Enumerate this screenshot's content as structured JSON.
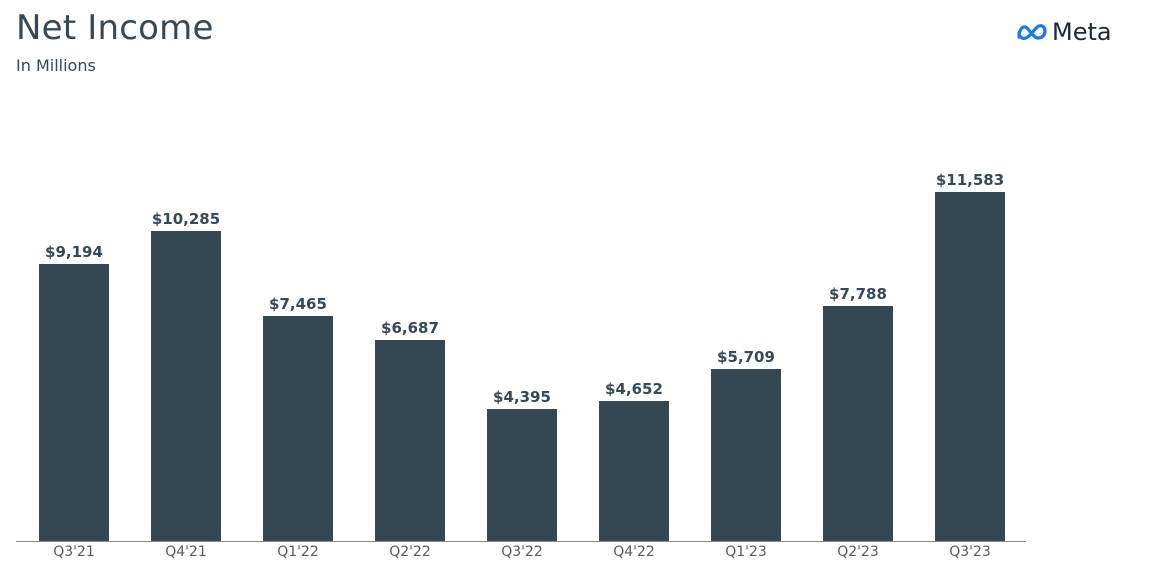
{
  "header": {
    "title": "Net Income",
    "subtitle": "In Millions",
    "logo_text": "Meta"
  },
  "colors": {
    "bar": "#344854",
    "title": "#34495a",
    "logo_blue": "#1877f2"
  },
  "chart_data": {
    "type": "bar",
    "title": "Net Income",
    "subtitle": "In Millions",
    "xlabel": "",
    "ylabel": "",
    "categories": [
      "Q3'21",
      "Q4'21",
      "Q1'22",
      "Q2'22",
      "Q3'22",
      "Q4'22",
      "Q1'23",
      "Q2'23",
      "Q3'23"
    ],
    "values": [
      9194,
      10285,
      7465,
      6687,
      4395,
      4652,
      5709,
      7788,
      11583
    ],
    "labels": [
      "$9,194",
      "$10,285",
      "$7,465",
      "$6,687",
      "$4,395",
      "$4,652",
      "$5,709",
      "$7,788",
      "$11,583"
    ],
    "ylim": [
      0,
      11583
    ],
    "grid": false,
    "legend": null
  }
}
